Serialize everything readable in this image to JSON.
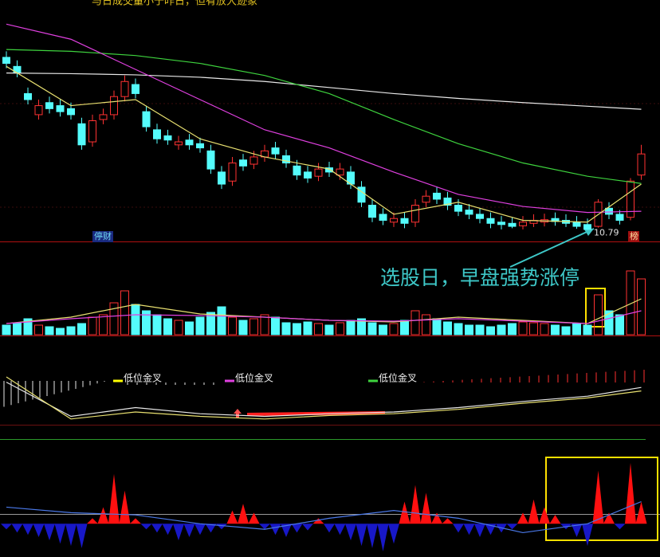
{
  "chart_data": [
    {
      "type": "candlestick",
      "title": "与日成交量小于昨日，但有放大迹象",
      "ylim": [
        10.6,
        14.6
      ],
      "up_color": "#ff3232",
      "down_color": "#54fcfc",
      "open": [
        13.65,
        13.5,
        13.05,
        12.7,
        12.9,
        12.85,
        12.8,
        12.55,
        12.25,
        12.62,
        12.7,
        13.0,
        13.2,
        12.75,
        12.45,
        12.35,
        12.2,
        12.28,
        12.22,
        12.1,
        11.75,
        11.6,
        11.95,
        11.88,
        12.0,
        12.15,
        12.02,
        11.85,
        11.75,
        11.68,
        11.82,
        11.7,
        11.75,
        11.5,
        11.2,
        11.05,
        10.92,
        10.98,
        10.92,
        11.25,
        11.4,
        11.32,
        11.2,
        11.12,
        11.05,
        10.98,
        10.92,
        10.9,
        10.86,
        10.9,
        10.92,
        10.98,
        10.95,
        10.92,
        10.88,
        10.85,
        11.15,
        11.05,
        11.0,
        11.7
      ],
      "high": [
        13.75,
        13.6,
        13.15,
        12.95,
        13.0,
        12.95,
        12.9,
        12.65,
        12.7,
        12.8,
        13.1,
        13.35,
        13.3,
        12.85,
        12.55,
        12.45,
        12.35,
        12.38,
        12.32,
        12.2,
        11.85,
        12.0,
        12.05,
        12.1,
        12.2,
        12.25,
        12.12,
        11.95,
        11.85,
        11.9,
        11.92,
        11.9,
        11.85,
        11.6,
        11.3,
        11.15,
        11.08,
        11.08,
        11.3,
        11.45,
        11.5,
        11.42,
        11.3,
        11.22,
        11.15,
        11.08,
        11.02,
        11.0,
        11.02,
        11.05,
        11.06,
        11.08,
        11.05,
        11.02,
        10.98,
        11.3,
        11.25,
        11.12,
        11.65,
        12.2
      ],
      "low": [
        13.47,
        13.32,
        12.87,
        12.62,
        12.72,
        12.67,
        12.62,
        12.12,
        12.17,
        12.54,
        12.62,
        12.92,
        12.97,
        12.42,
        12.22,
        12.2,
        12.12,
        12.12,
        12.07,
        11.72,
        11.47,
        11.52,
        11.77,
        11.8,
        11.92,
        11.97,
        11.82,
        11.62,
        11.57,
        11.6,
        11.67,
        11.62,
        11.47,
        11.17,
        10.92,
        10.87,
        10.84,
        10.82,
        10.84,
        11.17,
        11.22,
        11.12,
        11.02,
        10.97,
        10.9,
        10.82,
        10.8,
        10.82,
        10.8,
        10.84,
        10.85,
        10.86,
        10.84,
        10.81,
        10.79,
        10.83,
        10.97,
        10.88,
        10.95,
        11.62
      ],
      "close": [
        13.55,
        13.4,
        12.95,
        12.85,
        12.8,
        12.75,
        12.7,
        12.2,
        12.6,
        12.7,
        13.0,
        13.25,
        13.05,
        12.5,
        12.3,
        12.28,
        12.25,
        12.2,
        12.15,
        11.8,
        11.55,
        11.9,
        11.85,
        12.0,
        12.1,
        12.05,
        11.9,
        11.7,
        11.65,
        11.8,
        11.75,
        11.8,
        11.55,
        11.25,
        11.0,
        10.95,
        10.98,
        10.9,
        11.2,
        11.35,
        11.3,
        11.2,
        11.1,
        11.05,
        10.98,
        10.9,
        10.88,
        10.85,
        10.92,
        10.95,
        10.96,
        10.93,
        10.9,
        10.85,
        10.8,
        11.25,
        11.05,
        10.95,
        11.6,
        12.05
      ],
      "lines": [
        {
          "color": "#e8e8e8",
          "x": [
            0,
            6,
            12,
            18,
            24,
            30,
            36,
            42,
            48,
            54,
            59
          ],
          "values": [
            13.39,
            13.38,
            13.36,
            13.32,
            13.25,
            13.15,
            13.05,
            12.97,
            12.9,
            12.84,
            12.79
          ]
        },
        {
          "color": "#3ed33e",
          "x": [
            0,
            6,
            12,
            18,
            24,
            30,
            36,
            42,
            48,
            54,
            59
          ],
          "values": [
            13.78,
            13.75,
            13.68,
            13.55,
            13.35,
            13.05,
            12.62,
            12.22,
            11.9,
            11.68,
            11.56
          ]
        },
        {
          "color": "#e040e0",
          "x": [
            0,
            6,
            12,
            18,
            24,
            30,
            36,
            42,
            48,
            54,
            59
          ],
          "values": [
            14.2,
            13.95,
            13.45,
            12.95,
            12.45,
            12.15,
            11.75,
            11.38,
            11.18,
            11.08,
            11.1
          ]
        },
        {
          "color": "#e8e070",
          "x": [
            0,
            6,
            12,
            18,
            24,
            30,
            36,
            42,
            48,
            54,
            59
          ],
          "values": [
            13.5,
            12.85,
            12.95,
            12.3,
            12.0,
            11.8,
            11.05,
            11.25,
            10.95,
            10.92,
            11.55
          ]
        }
      ],
      "tags": [
        "停财",
        "榜"
      ]
    },
    {
      "type": "bar",
      "ylim": [
        0,
        100
      ],
      "annotation": "选股日，早盘强势涨停",
      "values": [
        12,
        15,
        20,
        12,
        10,
        8,
        10,
        14,
        22,
        25,
        40,
        55,
        38,
        30,
        25,
        20,
        18,
        16,
        22,
        28,
        35,
        22,
        18,
        20,
        25,
        22,
        15,
        14,
        16,
        14,
        12,
        15,
        18,
        20,
        15,
        12,
        14,
        18,
        30,
        25,
        20,
        16,
        14,
        12,
        12,
        10,
        12,
        14,
        16,
        15,
        14,
        12,
        10,
        14,
        12,
        50,
        30,
        25,
        80,
        70
      ],
      "lines": [
        {
          "color": "#e8e070",
          "x": [
            0,
            6,
            12,
            18,
            24,
            30,
            36,
            42,
            48,
            54,
            59
          ],
          "values": [
            14,
            22,
            38,
            26,
            22,
            18,
            16,
            22,
            18,
            14,
            45
          ]
        },
        {
          "color": "#e040e0",
          "x": [
            0,
            6,
            12,
            18,
            24,
            30,
            36,
            42,
            48,
            54,
            59
          ],
          "values": [
            14,
            20,
            25,
            24,
            22,
            18,
            17,
            20,
            17,
            14,
            30
          ]
        }
      ]
    },
    {
      "type": "line",
      "ylim": [
        0,
        100
      ],
      "lines": [
        {
          "color": "#e8e8e8",
          "x": [
            0,
            6,
            12,
            18,
            24,
            30,
            36,
            42,
            48,
            54,
            59
          ],
          "values": [
            64,
            25,
            35,
            28,
            25,
            28,
            30,
            35,
            42,
            48,
            58
          ]
        },
        {
          "color": "#e8e070",
          "x": [
            0,
            6,
            12,
            18,
            24,
            30,
            36,
            42,
            48,
            54,
            59
          ],
          "values": [
            70,
            22,
            30,
            25,
            22,
            26,
            28,
            33,
            40,
            46,
            54
          ]
        }
      ],
      "signals": [
        {
          "label": "低位金叉",
          "color": "#ffff00"
        },
        {
          "label": "低位金叉",
          "color": "#e040e0"
        },
        {
          "label": "低位金叉",
          "color": "#3ed33e"
        }
      ]
    },
    {
      "type": "area",
      "ylim": [
        -30,
        70
      ],
      "pos_color": "#ff1010",
      "neg_color": "#1818c8",
      "values": [
        -5,
        -8,
        -10,
        -12,
        -15,
        -18,
        -20,
        -22,
        5,
        15,
        45,
        30,
        5,
        -5,
        -8,
        -10,
        -15,
        -12,
        -10,
        -8,
        -5,
        12,
        18,
        10,
        -5,
        -10,
        -12,
        -8,
        -6,
        5,
        -8,
        -10,
        -15,
        -20,
        -22,
        -25,
        -18,
        20,
        35,
        28,
        10,
        5,
        -8,
        -10,
        -12,
        -10,
        -8,
        -5,
        10,
        22,
        15,
        8,
        -5,
        -12,
        -20,
        48,
        10,
        -5,
        55,
        20
      ],
      "lines": [
        {
          "color": "#4a78e8",
          "x": [
            0,
            6,
            12,
            18,
            24,
            30,
            36,
            42,
            48,
            54,
            59
          ],
          "values": [
            15,
            10,
            8,
            0,
            -5,
            5,
            12,
            5,
            -8,
            0,
            20
          ]
        }
      ]
    }
  ]
}
